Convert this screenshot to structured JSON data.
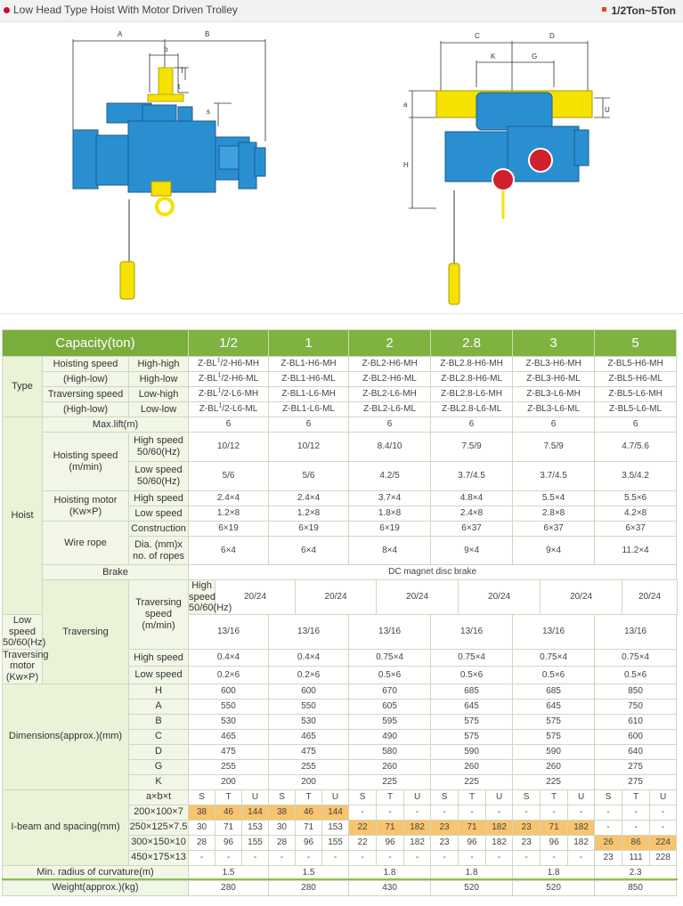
{
  "header": {
    "title": "Low Head Type Hoist With Motor Driven Trolley",
    "capacity_range": "1/2Ton~5Ton"
  },
  "figures": {
    "left": {
      "dims": [
        "A",
        "B",
        "b",
        "T",
        "t",
        "s"
      ]
    },
    "right": {
      "dims": [
        "C",
        "D",
        "K",
        "G",
        "a",
        "U",
        "H"
      ]
    }
  },
  "colors": {
    "header_green": "#7fb241",
    "label_bg": "#eaf2d8",
    "highlight": "#f7c46f",
    "hoist_blue": "#2a8fd0",
    "beam_yellow": "#f5e200"
  },
  "table": {
    "capacity_label": "Capacity(ton)",
    "capacities": [
      "1/2",
      "1",
      "2",
      "2.8",
      "3",
      "5"
    ],
    "type": {
      "label": "Type",
      "hoisting_speed": "Hoisting speed",
      "high_low_1": "(High-low)",
      "traversing_speed": "Traversing speed",
      "high_low_2": "(High-low)",
      "rows": [
        {
          "label": "High-high",
          "values": [
            "Z-BL1/2-H6-MH",
            "Z-BL1-H6-MH",
            "Z-BL2-H6-MH",
            "Z-BL2.8-H6-MH",
            "Z-BL3-H6-MH",
            "Z-BL5-H6-MH"
          ]
        },
        {
          "label": "High-low",
          "values": [
            "Z-BL1/2-H6-ML",
            "Z-BL1-H6-ML",
            "Z-BL2-H6-ML",
            "Z-BL2.8-H6-ML",
            "Z-BL3-H6-ML",
            "Z-BL5-H6-ML"
          ]
        },
        {
          "label": "Low-high",
          "values": [
            "Z-BL1/2-L6-MH",
            "Z-BL1-L6-MH",
            "Z-BL2-L6-MH",
            "Z-BL2.8-L6-MH",
            "Z-BL3-L6-MH",
            "Z-BL5-L6-MH"
          ]
        },
        {
          "label": "Low-low",
          "values": [
            "Z-BL1/2-L6-ML",
            "Z-BL1-L6-ML",
            "Z-BL2-L6-ML",
            "Z-BL2.8-L6-ML",
            "Z-BL3-L6-ML",
            "Z-BL5-L6-ML"
          ]
        }
      ],
      "half_prefix": "Z-BL",
      "half_sup": "1",
      "half_suffixes": [
        "/2-H6-MH",
        "/2-H6-ML",
        "/2-L6-MH",
        "/2-L6-ML"
      ]
    },
    "hoist": {
      "label": "Hoist",
      "max_lift": {
        "label": "Max.lift(m)",
        "values": [
          "6",
          "6",
          "6",
          "6",
          "6",
          "6"
        ]
      },
      "speed_label": "Hoisting speed\n(m/min)",
      "speed_high": {
        "label": "High speed\n50/60(Hz)",
        "values": [
          "10/12",
          "10/12",
          "8.4/10",
          "7.5/9",
          "7.5/9",
          "4.7/5.6"
        ]
      },
      "speed_low": {
        "label": "Low speed\n50/60(Hz)",
        "values": [
          "5/6",
          "5/6",
          "4.2/5",
          "3.7/4.5",
          "3.7/4.5",
          "3.5/4.2"
        ]
      },
      "motor_label": "Hoisting motor\n(Kw×P)",
      "motor_high": {
        "label": "High speed",
        "values": [
          "2.4×4",
          "2.4×4",
          "3.7×4",
          "4.8×4",
          "5.5×4",
          "5.5×6"
        ]
      },
      "motor_low": {
        "label": "Low speed",
        "values": [
          "1.2×8",
          "1.2×8",
          "1.8×8",
          "2.4×8",
          "2.8×8",
          "4.2×8"
        ]
      },
      "wire_label": "Wire rope",
      "construction": {
        "label": "Construction",
        "values": [
          "6×19",
          "6×19",
          "6×19",
          "6×37",
          "6×37",
          "6×37"
        ]
      },
      "dia": {
        "label": "Dia. (mm)x\nno. of ropes",
        "values": [
          "6×4",
          "6×4",
          "8×4",
          "9×4",
          "9×4",
          "11.2×4"
        ]
      },
      "brake": {
        "label": "Brake",
        "value": "DC magnet disc brake"
      }
    },
    "traversing": {
      "label": "Traversing",
      "speed_label": "Traversing speed\n(m/min)",
      "speed_high": {
        "label": "High speed\n50/60(Hz)",
        "values": [
          "20/24",
          "20/24",
          "20/24",
          "20/24",
          "20/24",
          "20/24"
        ]
      },
      "speed_low": {
        "label": "Low speed\n50/60(Hz)",
        "values": [
          "13/16",
          "13/16",
          "13/16",
          "13/16",
          "13/16",
          "13/16"
        ]
      },
      "motor_label": "Traversing motor\n(Kw×P)",
      "motor_high": {
        "label": "High speed",
        "values": [
          "0.4×4",
          "0.4×4",
          "0.75×4",
          "0.75×4",
          "0.75×4",
          "0.75×4"
        ]
      },
      "motor_low": {
        "label": "Low speed",
        "values": [
          "0.2×6",
          "0.2×6",
          "0.5×6",
          "0.5×6",
          "0.5×6",
          "0.5×6"
        ]
      }
    },
    "dimensions": {
      "label": "Dimensions(approx.)(mm)",
      "rows": [
        {
          "label": "H",
          "values": [
            "600",
            "600",
            "670",
            "685",
            "685",
            "850"
          ]
        },
        {
          "label": "A",
          "values": [
            "550",
            "550",
            "605",
            "645",
            "645",
            "750"
          ]
        },
        {
          "label": "B",
          "values": [
            "530",
            "530",
            "595",
            "575",
            "575",
            "610"
          ]
        },
        {
          "label": "C",
          "values": [
            "465",
            "465",
            "490",
            "575",
            "575",
            "600"
          ]
        },
        {
          "label": "D",
          "values": [
            "475",
            "475",
            "580",
            "590",
            "590",
            "640"
          ]
        },
        {
          "label": "G",
          "values": [
            "255",
            "255",
            "260",
            "260",
            "260",
            "275"
          ]
        },
        {
          "label": "K",
          "values": [
            "200",
            "200",
            "225",
            "225",
            "225",
            "275"
          ]
        }
      ]
    },
    "ibeam": {
      "label": "I-beam and spacing(mm)",
      "header_label": "a×b×t",
      "stu": [
        "S",
        "T",
        "U"
      ],
      "rows": [
        {
          "label": "200×100×7",
          "values": [
            "38",
            "46",
            "144",
            "38",
            "46",
            "144",
            "-",
            "-",
            "-",
            "-",
            "-",
            "-",
            "-",
            "-",
            "-",
            "-",
            "-",
            "-"
          ],
          "hl": [
            0,
            1,
            2,
            3,
            4,
            5
          ]
        },
        {
          "label": "250×125×7.5",
          "values": [
            "30",
            "71",
            "153",
            "30",
            "71",
            "153",
            "22",
            "71",
            "182",
            "23",
            "71",
            "182",
            "23",
            "71",
            "182",
            "-",
            "-",
            "-"
          ],
          "hl": [
            6,
            7,
            8,
            9,
            10,
            11,
            12,
            13,
            14
          ]
        },
        {
          "label": "300×150×10",
          "values": [
            "28",
            "96",
            "155",
            "28",
            "96",
            "155",
            "22",
            "96",
            "182",
            "23",
            "96",
            "182",
            "23",
            "96",
            "182",
            "26",
            "86",
            "224"
          ],
          "hl": [
            15,
            16,
            17
          ]
        },
        {
          "label": "450×175×13",
          "values": [
            "-",
            "-",
            "-",
            "-",
            "-",
            "-",
            "-",
            "-",
            "-",
            "-",
            "-",
            "-",
            "-",
            "-",
            "-",
            "23",
            "111",
            "228"
          ],
          "hl": []
        }
      ]
    },
    "min_radius": {
      "label": "Min. radius of curvature(m)",
      "values": [
        "1.5",
        "1.5",
        "1.8",
        "1.8",
        "1.8",
        "2.3"
      ]
    },
    "weight": {
      "label": "Weight(approx.)(kg)",
      "values": [
        "280",
        "280",
        "430",
        "520",
        "520",
        "850"
      ]
    }
  }
}
